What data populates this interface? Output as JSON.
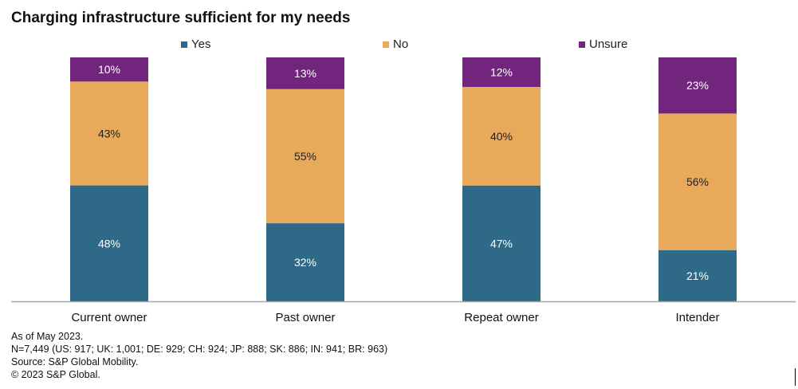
{
  "chart_data": {
    "type": "bar",
    "stacked": true,
    "title": "Charging infrastructure  sufficient  for my needs",
    "categories": [
      "Current owner",
      "Past owner",
      "Repeat owner",
      "Intender"
    ],
    "series": [
      {
        "name": "Yes",
        "color": "#2E6A87",
        "values": [
          48,
          32,
          47,
          21
        ],
        "labels": [
          "48%",
          "32%",
          "47%",
          "21%"
        ],
        "label_color": "#ffffff"
      },
      {
        "name": "No",
        "color": "#E8A95B",
        "values": [
          43,
          55,
          40,
          56
        ],
        "labels": [
          "43%",
          "55%",
          "40%",
          "56%"
        ],
        "label_color": "#222222"
      },
      {
        "name": "Unsure",
        "color": "#72257D",
        "values": [
          10,
          13,
          12,
          23
        ],
        "labels": [
          "10%",
          "13%",
          "12%",
          "23%"
        ],
        "label_color": "#ffffff"
      }
    ],
    "legend_position": "top",
    "xlabel": "",
    "ylabel": "",
    "grid": false
  },
  "footer": {
    "lines": [
      "As of May 2023.",
      "N=7,449 (US: 917; UK: 1,001; DE: 929; CH: 924; JP: 888; SK: 886; IN: 941; BR: 963)",
      "Source: S&P Global Mobility.",
      "© 2023 S&P Global."
    ]
  }
}
